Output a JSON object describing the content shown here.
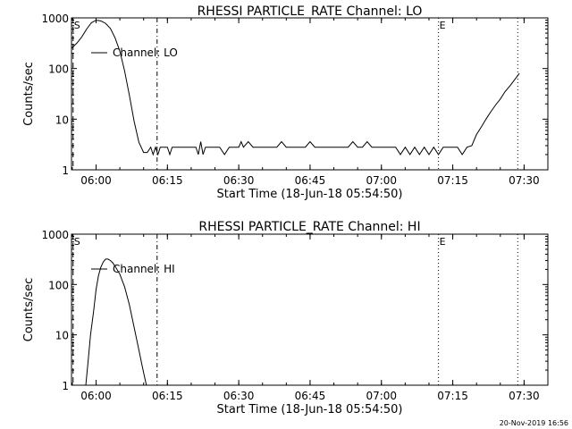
{
  "chart_data": [
    {
      "type": "line",
      "title": "RHESSI PARTICLE_RATE Channel: LO",
      "xlabel": "Start Time (18-Jun-18 05:54:50)",
      "ylabel": "Counts/sec",
      "yscale": "log",
      "ylim": [
        1,
        1000
      ],
      "yticks": [
        1,
        10,
        100,
        1000
      ],
      "ytick_labels": [
        "1",
        "10",
        "100",
        "1000"
      ],
      "xlim": [
        "05:54:50",
        "07:35:00"
      ],
      "xticks": [
        "06:00",
        "06:15",
        "06:30",
        "06:45",
        "07:00",
        "07:15",
        "07:30"
      ],
      "grid": false,
      "legend": {
        "label": "Channel: LO",
        "placement": "top-left"
      },
      "markers": [
        {
          "time": "05:55:10",
          "style": "dashed",
          "label": "S"
        },
        {
          "time": "06:12:50",
          "style": "dashdot",
          "label": ""
        },
        {
          "time": "07:12:00",
          "style": "dotted",
          "label": "E"
        },
        {
          "time": "07:28:40",
          "style": "dotted",
          "label": ""
        }
      ],
      "series": [
        {
          "name": "Channel: LO",
          "x": [
            "05:54:50",
            "05:56:00",
            "05:57:00",
            "05:58:00",
            "05:59:00",
            "06:00:00",
            "06:01:00",
            "06:02:00",
            "06:03:00",
            "06:04:00",
            "06:05:00",
            "06:06:00",
            "06:07:00",
            "06:08:00",
            "06:09:00",
            "06:10:00",
            "06:10:45",
            "06:11:30",
            "06:12:00",
            "06:12:30",
            "06:13:00",
            "06:13:30",
            "06:14:00",
            "06:14:30",
            "06:15:00",
            "06:15:30",
            "06:16:00",
            "06:16:30",
            "06:17:00",
            "06:17:30",
            "06:18:00",
            "06:18:30",
            "06:19:00",
            "06:19:30",
            "06:20:00",
            "06:20:30",
            "06:21:00",
            "06:21:30",
            "06:22:00",
            "06:22:30",
            "06:23:00",
            "06:24:00",
            "06:25:00",
            "06:26:00",
            "06:27:00",
            "06:28:00",
            "06:29:00",
            "06:29:30",
            "06:30:00",
            "06:30:30",
            "06:31:00",
            "06:32:00",
            "06:33:00",
            "06:34:00",
            "06:35:00",
            "06:36:00",
            "06:37:00",
            "06:38:00",
            "06:39:00",
            "06:40:00",
            "06:41:00",
            "06:42:00",
            "06:43:00",
            "06:44:00",
            "06:45:00",
            "06:46:00",
            "06:47:00",
            "06:48:00",
            "06:49:00",
            "06:50:00",
            "06:51:00",
            "06:52:00",
            "06:53:00",
            "06:54:00",
            "06:55:00",
            "06:56:00",
            "06:57:00",
            "06:58:00",
            "06:59:00",
            "07:00:00",
            "07:01:00",
            "07:02:00",
            "07:03:00",
            "07:04:00",
            "07:05:00",
            "07:06:00",
            "07:07:00",
            "07:08:00",
            "07:09:00",
            "07:10:00",
            "07:11:00",
            "07:12:00",
            "07:13:00",
            "07:14:00",
            "07:15:00",
            "07:16:00",
            "07:17:00",
            "07:18:00",
            "07:19:00",
            "07:20:00",
            "07:21:00",
            "07:22:00",
            "07:23:00",
            "07:24:00",
            "07:25:00",
            "07:26:00",
            "07:27:00",
            "07:28:00",
            "07:29:00"
          ],
          "values": [
            250,
            320,
            420,
            600,
            800,
            900,
            870,
            780,
            620,
            400,
            220,
            90,
            30,
            9,
            3.5,
            2.2,
            2.2,
            2.8,
            2.0,
            2.8,
            2.0,
            2.8,
            2.8,
            2.8,
            2.8,
            2.0,
            2.8,
            2.8,
            2.8,
            2.8,
            2.8,
            2.8,
            2.8,
            2.8,
            2.8,
            2.8,
            2.8,
            2.0,
            3.6,
            2.0,
            2.8,
            2.8,
            2.8,
            2.8,
            2.0,
            2.8,
            2.8,
            2.8,
            2.8,
            3.6,
            2.8,
            3.6,
            2.8,
            2.8,
            2.8,
            2.8,
            2.8,
            2.8,
            3.6,
            2.8,
            2.8,
            2.8,
            2.8,
            2.8,
            3.6,
            2.8,
            2.8,
            2.8,
            2.8,
            2.8,
            2.8,
            2.8,
            2.8,
            3.6,
            2.8,
            2.8,
            3.6,
            2.8,
            2.8,
            2.8,
            2.8,
            2.8,
            2.8,
            2.0,
            2.8,
            2.0,
            2.8,
            2.0,
            2.8,
            2.0,
            2.8,
            2.0,
            2.8,
            2.8,
            2.8,
            2.8,
            2.0,
            2.8,
            3.0,
            5,
            7,
            10,
            14,
            19,
            25,
            35,
            45,
            60,
            80
          ]
        }
      ]
    },
    {
      "type": "line",
      "title": "RHESSI PARTICLE_RATE Channel: HI",
      "xlabel": "Start Time (18-Jun-18 05:54:50)",
      "ylabel": "Counts/sec",
      "yscale": "log",
      "ylim": [
        1,
        1000
      ],
      "yticks": [
        1,
        10,
        100,
        1000
      ],
      "ytick_labels": [
        "1",
        "10",
        "100",
        "1000"
      ],
      "xlim": [
        "05:54:50",
        "07:35:00"
      ],
      "xticks": [
        "06:00",
        "06:15",
        "06:30",
        "06:45",
        "07:00",
        "07:15",
        "07:30"
      ],
      "grid": false,
      "legend": {
        "label": "Channel: HI",
        "placement": "top-left"
      },
      "markers": [
        {
          "time": "05:55:10",
          "style": "dashed",
          "label": "S"
        },
        {
          "time": "06:12:50",
          "style": "dashdot",
          "label": ""
        },
        {
          "time": "07:12:00",
          "style": "dotted",
          "label": "E"
        },
        {
          "time": "07:28:40",
          "style": "dotted",
          "label": ""
        }
      ],
      "series": [
        {
          "name": "Channel: HI",
          "x": [
            "05:57:50",
            "05:58:20",
            "05:58:50",
            "05:59:30",
            "06:00:00",
            "06:00:30",
            "06:01:00",
            "06:01:30",
            "06:02:00",
            "06:02:30",
            "06:03:00",
            "06:03:30",
            "06:04:00",
            "06:05:00",
            "06:06:00",
            "06:07:00",
            "06:08:00",
            "06:09:00",
            "06:09:40",
            "06:10:10",
            "06:10:35"
          ],
          "values": [
            1.0,
            3,
            10,
            30,
            80,
            150,
            220,
            280,
            320,
            320,
            300,
            270,
            230,
            160,
            90,
            40,
            14,
            5,
            2.5,
            1.5,
            1.0
          ]
        }
      ]
    }
  ],
  "footer": {
    "stamp": "20-Nov-2019 16:56"
  }
}
